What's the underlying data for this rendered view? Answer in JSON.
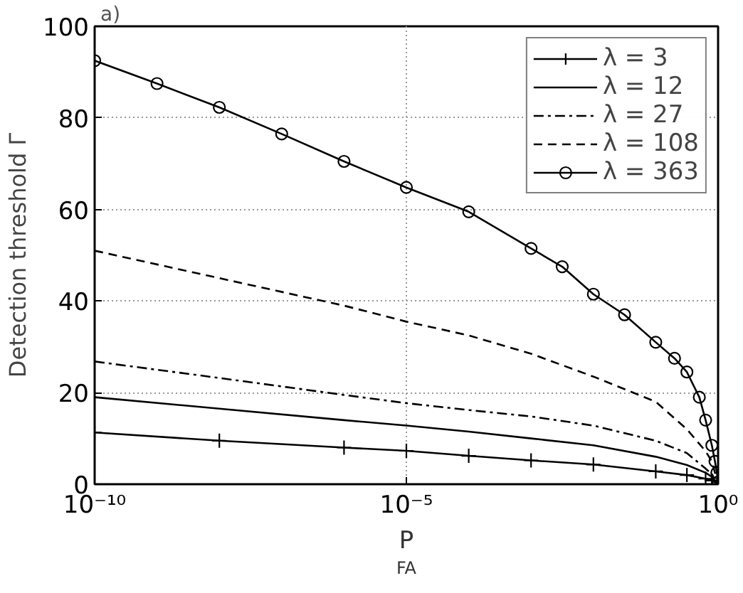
{
  "chart_data": {
    "type": "line",
    "xlabel": "P$_{FA}$",
    "ylabel": "Detection threshold Γ",
    "annotations": [
      "a)"
    ],
    "log": "x",
    "xlim": [
      1e-10,
      1
    ],
    "ylim": [
      0,
      100
    ],
    "xticks": [
      {
        "value": 1e-10,
        "label": "10⁻¹⁰"
      },
      {
        "value": 1e-05,
        "label": "10⁻⁵"
      },
      {
        "value": 1,
        "label": "10⁰"
      }
    ],
    "yticks": [
      0,
      20,
      40,
      60,
      80,
      100
    ],
    "grid": true,
    "legend": "top right",
    "series": [
      {
        "name": "λ = 3",
        "color": "#000000",
        "marker": "cross",
        "line_style": "solid",
        "x": [
          1e-10,
          1e-08,
          1e-06,
          1e-05,
          0.0001,
          0.001,
          0.01,
          0.1,
          0.316,
          0.631,
          0.794,
          1
        ],
        "values": [
          11.3,
          9.5,
          8,
          7.3,
          6.2,
          5.2,
          4.3,
          2.8,
          2,
          1.2,
          0.8,
          0
        ]
      },
      {
        "name": "λ = 12",
        "color": "#000000",
        "marker": "none",
        "line_style": "solid",
        "x": [
          1e-10,
          1e-08,
          1e-06,
          1e-05,
          0.0001,
          0.001,
          0.01,
          0.1,
          0.316,
          0.631,
          0.794,
          1
        ],
        "values": [
          19,
          16.5,
          14,
          12.8,
          11.5,
          10,
          8.5,
          6,
          4.2,
          2.5,
          1.6,
          0
        ]
      },
      {
        "name": "λ = 27",
        "color": "#000000",
        "marker": "none",
        "line_style": "dashdot",
        "x": [
          1e-10,
          1e-08,
          1e-06,
          1e-05,
          0.0001,
          0.001,
          0.01,
          0.1,
          0.316,
          0.631,
          0.794,
          1
        ],
        "values": [
          26.8,
          23.2,
          19.5,
          17.7,
          16.2,
          14.8,
          12.8,
          9.5,
          6.8,
          3.4,
          2.2,
          0
        ]
      },
      {
        "name": "λ = 108",
        "color": "#000000",
        "marker": "none",
        "line_style": "dashed",
        "x": [
          1e-10,
          1e-08,
          1e-06,
          1e-05,
          0.0001,
          0.001,
          0.01,
          0.1,
          0.316,
          0.631,
          0.794,
          1
        ],
        "values": [
          51,
          45,
          39,
          35.5,
          32.5,
          28.5,
          23.5,
          18,
          12,
          7.2,
          5,
          0
        ]
      },
      {
        "name": "λ = 363",
        "color": "#000000",
        "marker": "circle",
        "line_style": "solid",
        "x": [
          1e-10,
          1e-09,
          1e-08,
          1e-07,
          1e-06,
          1e-05,
          0.0001,
          0.001,
          0.00316,
          0.01,
          0.0316,
          0.1,
          0.2,
          0.316,
          0.5,
          0.631,
          0.794,
          0.891,
          0.955,
          1
        ],
        "values": [
          92.5,
          87.5,
          82.3,
          76.5,
          70.5,
          64.8,
          59.5,
          51.5,
          47.5,
          41.5,
          37,
          31,
          27.5,
          24.5,
          19,
          14,
          8.5,
          5,
          2.5,
          0.5
        ]
      }
    ]
  }
}
